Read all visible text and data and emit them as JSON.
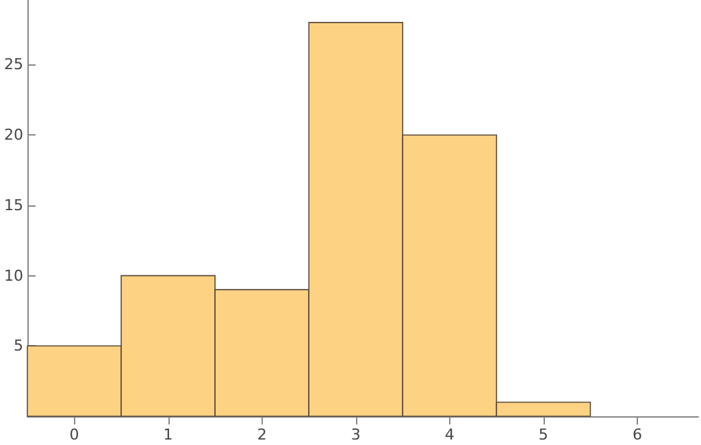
{
  "chart_data": {
    "type": "histogram",
    "bins": [
      -0.5,
      0.5,
      1.5,
      2.5,
      3.5,
      4.5,
      5.5
    ],
    "values": [
      5,
      10,
      9,
      28,
      20,
      1
    ],
    "color": "#fdd282",
    "xlim": [
      -0.5,
      6.65
    ],
    "xticks": [
      0,
      1,
      2,
      3,
      4,
      5,
      6
    ],
    "ylim": [
      0,
      29.6
    ],
    "yticks": [
      5,
      10,
      15,
      20,
      25
    ],
    "grid": false
  }
}
